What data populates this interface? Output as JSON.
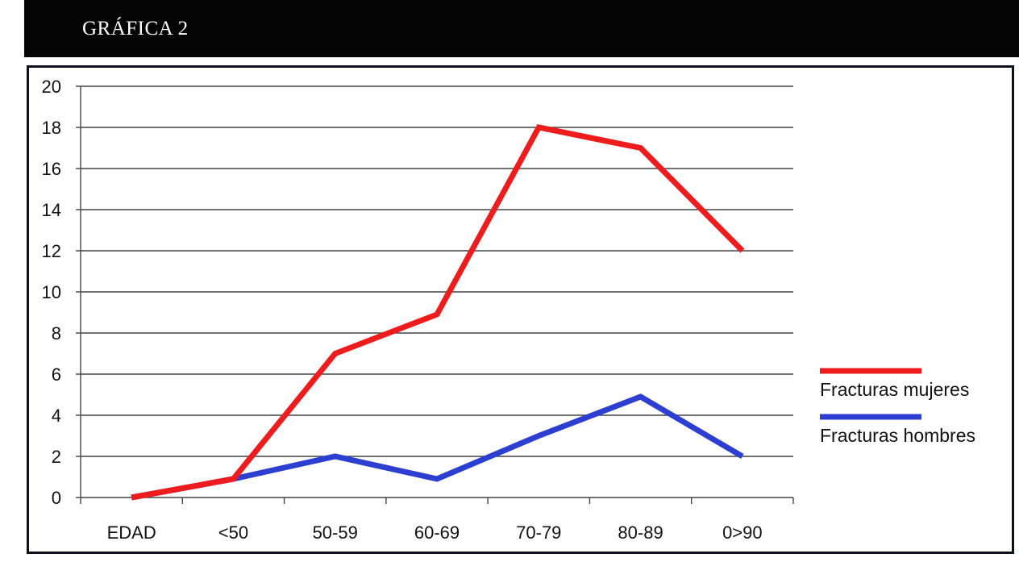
{
  "header": {
    "title": "GRÁFICA 2"
  },
  "chart_data": {
    "type": "line",
    "title": "",
    "xlabel": "",
    "ylabel": "",
    "categories": [
      "EDAD",
      "<50",
      "50-59",
      "60-69",
      "70-79",
      "80-89",
      "0>90"
    ],
    "ylim": [
      0,
      20
    ],
    "yticks": [
      0,
      2,
      4,
      6,
      8,
      10,
      12,
      14,
      16,
      18,
      20
    ],
    "grid": true,
    "legend_position": "right",
    "series": [
      {
        "name": "Fracturas mujeres",
        "color": "#ee1c1c",
        "values": [
          0,
          0.9,
          7,
          8.9,
          18,
          17,
          12
        ]
      },
      {
        "name": "Fracturas hombres",
        "color": "#2c3fd1",
        "values": [
          0,
          0.9,
          2,
          0.9,
          3,
          4.9,
          2
        ]
      }
    ]
  }
}
